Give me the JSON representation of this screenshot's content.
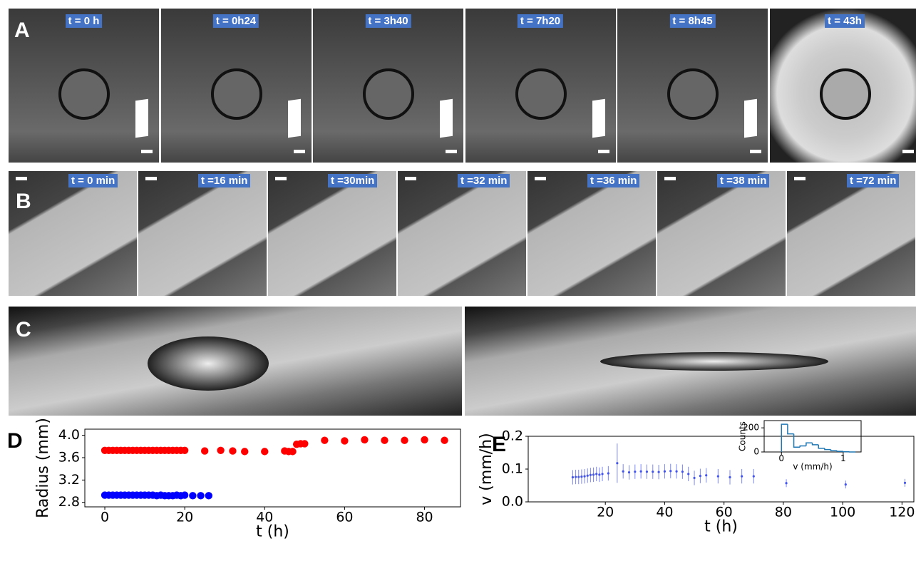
{
  "panels": {
    "A": {
      "label": "A",
      "frames": [
        "t = 0 h",
        "t = 0h24",
        "t = 3h40",
        "t = 7h20",
        "t = 8h45",
        "t = 43h"
      ]
    },
    "B": {
      "label": "B",
      "frames": [
        "t = 0 min",
        "t =16 min",
        "t =30min",
        "t =32 min",
        "t =36 min",
        "t =38 min",
        "t =72 min"
      ]
    },
    "C": {
      "label": "C"
    }
  },
  "chart_data": [
    {
      "type": "scatter",
      "panel_label": "D",
      "xlabel": "t (h)",
      "ylabel": "Radius (mm)",
      "xlim": [
        -5,
        89
      ],
      "ylim": [
        2.72,
        4.11
      ],
      "xticks": [
        0,
        20,
        40,
        60,
        80
      ],
      "yticks": [
        2.8,
        3.2,
        3.6,
        {
          "value": 4,
          "label": "4.0"
        }
      ],
      "series": [
        {
          "color": "#ff0000",
          "x": [
            0,
            1,
            2,
            3,
            4,
            5,
            6,
            7,
            8,
            9,
            10,
            11,
            12,
            13,
            14,
            15,
            16,
            17,
            18,
            19,
            20,
            25,
            29,
            32,
            35,
            40,
            45,
            46,
            47,
            48,
            49,
            50,
            55,
            60,
            65,
            70,
            75,
            80,
            85
          ],
          "values": [
            3.73,
            3.73,
            3.73,
            3.73,
            3.73,
            3.73,
            3.73,
            3.73,
            3.73,
            3.73,
            3.73,
            3.73,
            3.73,
            3.73,
            3.73,
            3.73,
            3.73,
            3.73,
            3.73,
            3.73,
            3.73,
            3.72,
            3.73,
            3.72,
            3.71,
            3.71,
            3.72,
            3.71,
            3.71,
            3.84,
            3.85,
            3.85,
            3.91,
            3.9,
            3.92,
            3.91,
            3.91,
            3.92,
            3.91
          ]
        },
        {
          "color": "#0000ff",
          "x": [
            0,
            1,
            2,
            3,
            4,
            5,
            6,
            7,
            8,
            9,
            10,
            11,
            12,
            13,
            14,
            15,
            16,
            17,
            18,
            19,
            20,
            22,
            24,
            26
          ],
          "values": [
            2.93,
            2.93,
            2.93,
            2.93,
            2.93,
            2.93,
            2.93,
            2.93,
            2.93,
            2.93,
            2.93,
            2.93,
            2.93,
            2.92,
            2.93,
            2.92,
            2.92,
            2.92,
            2.93,
            2.92,
            2.93,
            2.92,
            2.92,
            2.92
          ]
        }
      ]
    },
    {
      "type": "errorbar",
      "panel_label": "E",
      "xlabel": "t (h)",
      "ylabel": "v (mm/h)",
      "xlim": [
        -6,
        124
      ],
      "ylim": [
        0,
        0.2
      ],
      "xticks": [
        20,
        40,
        60,
        80,
        100,
        120
      ],
      "yticks": [
        {
          "value": 0,
          "label": "0.0"
        },
        0.1,
        0.2
      ],
      "color": "#4455ee",
      "x": [
        9,
        10,
        11,
        12,
        13,
        14,
        15,
        16,
        17,
        18,
        19,
        21,
        24,
        26,
        28,
        30,
        32,
        34,
        36,
        38,
        40,
        42,
        44,
        46,
        48,
        50,
        52,
        54,
        58,
        62,
        66,
        70,
        81,
        101,
        121
      ],
      "values": [
        0.075,
        0.076,
        0.076,
        0.077,
        0.078,
        0.08,
        0.082,
        0.083,
        0.085,
        0.083,
        0.085,
        0.087,
        0.118,
        0.093,
        0.09,
        0.092,
        0.093,
        0.092,
        0.092,
        0.091,
        0.093,
        0.094,
        0.093,
        0.092,
        0.085,
        0.073,
        0.079,
        0.081,
        0.078,
        0.075,
        0.078,
        0.078,
        0.057,
        0.053,
        0.058
      ],
      "errors": [
        0.022,
        0.022,
        0.022,
        0.022,
        0.022,
        0.022,
        0.022,
        0.022,
        0.022,
        0.022,
        0.022,
        0.022,
        0.06,
        0.022,
        0.022,
        0.022,
        0.022,
        0.022,
        0.022,
        0.022,
        0.022,
        0.022,
        0.022,
        0.022,
        0.022,
        0.022,
        0.022,
        0.022,
        0.022,
        0.022,
        0.022,
        0.022,
        0.012,
        0.012,
        0.012
      ]
    },
    {
      "type": "histogram",
      "xlabel": "v (mm/h)",
      "ylabel": "Counts",
      "color": "#1f77b4",
      "xlim": [
        -0.28,
        1.29
      ],
      "ylim": [
        0,
        260
      ],
      "xticks": [
        0,
        1
      ],
      "yticks": [
        0,
        200
      ],
      "bins": [
        0,
        0.1,
        0.2,
        0.3,
        0.4,
        0.5,
        0.6,
        0.7,
        0.8,
        0.9,
        1,
        1.1,
        1.2
      ],
      "counts": [
        230,
        150,
        40,
        50,
        75,
        60,
        30,
        20,
        10,
        5,
        2,
        0
      ]
    }
  ]
}
